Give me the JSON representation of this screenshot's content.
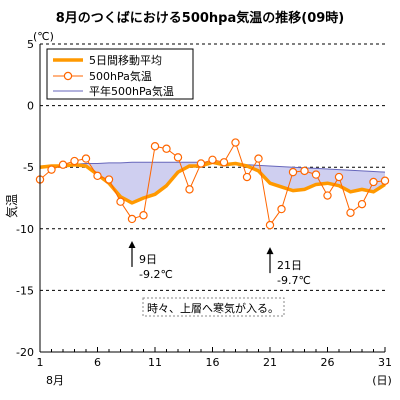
{
  "chart_data": {
    "type": "line",
    "title": "8月のつくばにおける500hpa気温の推移(09時)",
    "ylabel": "気温",
    "y_unit": "(℃)",
    "x_unit": "(日)",
    "x_month_label": "8月",
    "xlim": [
      1,
      31
    ],
    "ylim": [
      -20,
      5
    ],
    "y_ticks": [
      5,
      0,
      -5,
      -10,
      -15,
      -20
    ],
    "x_ticks": [
      1,
      6,
      11,
      16,
      21,
      26,
      31
    ],
    "grid": "dashed horizontal",
    "legend_position": "top-left",
    "x": [
      1,
      2,
      3,
      4,
      5,
      6,
      7,
      8,
      9,
      10,
      11,
      12,
      13,
      14,
      15,
      16,
      17,
      18,
      19,
      20,
      21,
      22,
      23,
      24,
      25,
      26,
      27,
      28,
      29,
      30,
      31
    ],
    "series": [
      {
        "name": "5日間移動平均",
        "color": "#ff9900",
        "style": "thick-line",
        "values": [
          -5.0,
          -4.9,
          -4.9,
          -4.8,
          -4.9,
          -5.6,
          -6.3,
          -7.4,
          -7.9,
          -7.5,
          -7.2,
          -6.5,
          -5.4,
          -4.9,
          -4.9,
          -4.6,
          -4.8,
          -4.7,
          -4.9,
          -5.3,
          -6.3,
          -6.6,
          -6.9,
          -6.8,
          -6.4,
          -6.3,
          -6.5,
          -7.0,
          -6.8,
          -7.0,
          -6.4
        ]
      },
      {
        "name": "500hPa気温",
        "color": "#ff6600",
        "style": "line-with-hollow-markers",
        "values": [
          -6.0,
          -5.2,
          -4.8,
          -4.5,
          -4.3,
          -5.7,
          -6.0,
          -7.8,
          -9.2,
          -8.9,
          -3.3,
          -3.5,
          -4.2,
          -6.8,
          -4.7,
          -4.4,
          -4.6,
          -3.0,
          -5.8,
          -4.3,
          -9.7,
          -8.4,
          -5.4,
          -5.3,
          -5.6,
          -7.3,
          -5.8,
          -8.7,
          -8.0,
          -6.2,
          -6.1
        ]
      },
      {
        "name": "平年500hPa気温",
        "color": "#6666bb",
        "style": "thin-line-shaded",
        "shade_color": "#cfcff0",
        "values": [
          -4.9,
          -4.85,
          -4.8,
          -4.75,
          -4.7,
          -4.7,
          -4.65,
          -4.65,
          -4.6,
          -4.6,
          -4.6,
          -4.6,
          -4.6,
          -4.6,
          -4.6,
          -4.65,
          -4.7,
          -4.75,
          -4.8,
          -4.85,
          -4.9,
          -4.95,
          -5.0,
          -5.05,
          -5.1,
          -5.15,
          -5.2,
          -5.25,
          -5.3,
          -5.35,
          -5.4
        ]
      }
    ],
    "annotations": [
      {
        "day": 9,
        "value": -9.2,
        "line1": "9日",
        "line2": "-9.2℃"
      },
      {
        "day": 21,
        "value": -9.7,
        "line1": "21日",
        "line2": "-9.7℃"
      }
    ],
    "note": "時々、上層へ寒気が入る。"
  }
}
